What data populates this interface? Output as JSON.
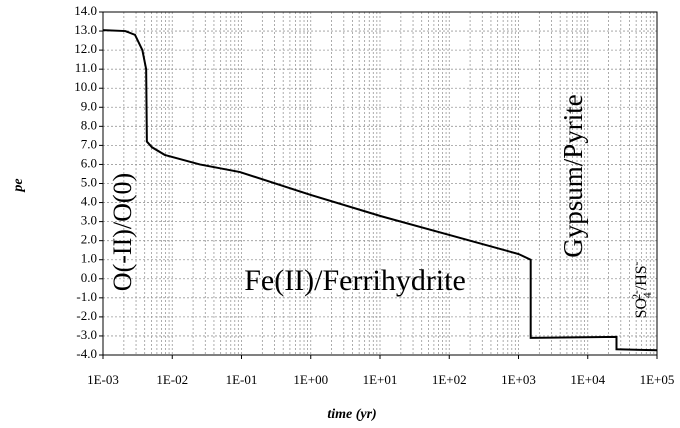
{
  "chart_data": {
    "type": "line",
    "x_label": "time (yr)",
    "y_label": "pe",
    "x": [
      0.001,
      0.0021,
      0.0029,
      0.0037,
      0.0042,
      0.0043,
      0.0051,
      0.0078,
      0.025,
      0.095,
      1,
      10,
      100,
      1000,
      1500,
      1500,
      26000,
      26000,
      100000
    ],
    "values": [
      13.05,
      13.0,
      12.8,
      12.0,
      11.0,
      7.2,
      6.9,
      6.5,
      6.0,
      5.6,
      4.4,
      3.3,
      2.3,
      1.3,
      1.0,
      -3.1,
      -3.05,
      -3.7,
      -3.75
    ],
    "color": "#000000",
    "xscale": "log",
    "xlim": [
      0.001,
      100000
    ],
    "xticks": [
      {
        "value": 0.001,
        "label": "1E-03"
      },
      {
        "value": 0.01,
        "label": "1E-02"
      },
      {
        "value": 0.1,
        "label": "1E-01"
      },
      {
        "value": 1,
        "label": "1E+00"
      },
      {
        "value": 10,
        "label": "1E+01"
      },
      {
        "value": 100,
        "label": "1E+02"
      },
      {
        "value": 1000,
        "label": "1E+03"
      },
      {
        "value": 10000,
        "label": "1E+04"
      },
      {
        "value": 100000,
        "label": "1E+05"
      }
    ],
    "ylim": [
      -4,
      14
    ],
    "yticks": [
      {
        "value": -4,
        "label": "-4.0"
      },
      {
        "value": -3,
        "label": "-3.0"
      },
      {
        "value": -2,
        "label": "-2.0"
      },
      {
        "value": -1,
        "label": "-1.0"
      },
      {
        "value": 0,
        "label": "0.0"
      },
      {
        "value": 1,
        "label": "1.0"
      },
      {
        "value": 2,
        "label": "2.0"
      },
      {
        "value": 3,
        "label": "3.0"
      },
      {
        "value": 4,
        "label": "4.0"
      },
      {
        "value": 5,
        "label": "5.0"
      },
      {
        "value": 6,
        "label": "6.0"
      },
      {
        "value": 7,
        "label": "7.0"
      },
      {
        "value": 8,
        "label": "8.0"
      },
      {
        "value": 9,
        "label": "9.0"
      },
      {
        "value": 10,
        "label": "10.0"
      },
      {
        "value": 11,
        "label": "11.0"
      },
      {
        "value": 12,
        "label": "12.0"
      },
      {
        "value": 13,
        "label": "13.0"
      },
      {
        "value": 14,
        "label": "14.0"
      }
    ],
    "grid": true,
    "annotations": [
      {
        "text": "O(-II)/O(0)"
      },
      {
        "text": "Fe(II)/Ferrihydrite"
      },
      {
        "text": "Gypsum/Pyrite"
      },
      {
        "parts": [
          "SO",
          "4",
          "2-",
          "/HS",
          "-"
        ]
      }
    ]
  }
}
